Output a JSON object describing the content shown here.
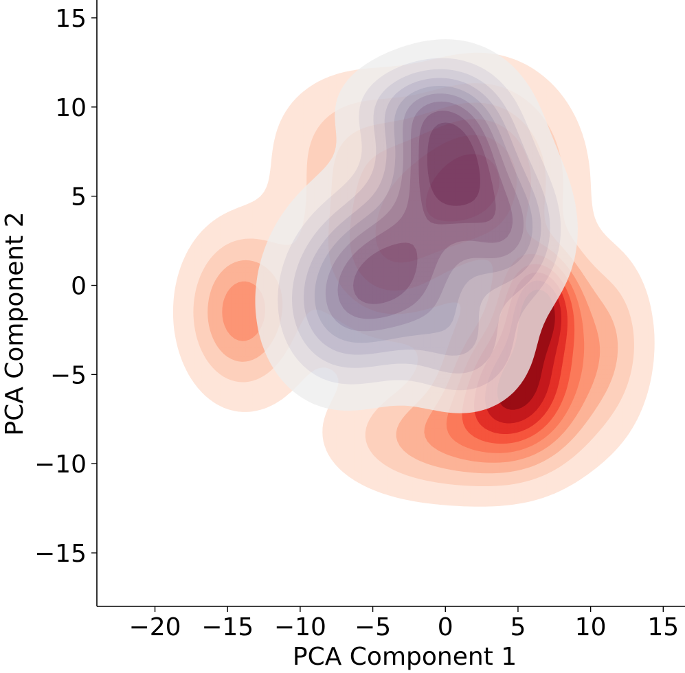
{
  "chart_data": {
    "type": "kde-contour",
    "title": "",
    "xlabel": "PCA Component 1",
    "ylabel": "PCA Component 2",
    "xlim": [
      -24,
      16.5
    ],
    "ylim": [
      -18,
      16
    ],
    "xticks": [
      -20,
      -15,
      -10,
      -5,
      0,
      5,
      10,
      15
    ],
    "yticks": [
      -15,
      -10,
      -5,
      0,
      5,
      10,
      15
    ],
    "xtick_labels": [
      "−20",
      "−15",
      "−10",
      "−5",
      "0",
      "5",
      "10",
      "15"
    ],
    "ytick_labels": [
      "−15",
      "−10",
      "−5",
      "0",
      "5",
      "10",
      "15"
    ],
    "grid": false,
    "series": [
      {
        "colormap": "Reds",
        "levels": 9,
        "colors": [
          "#fee5d9",
          "#fdd0bc",
          "#fcb397",
          "#fc9575",
          "#fb7a5a",
          "#f6553d",
          "#e32f27",
          "#c4181c",
          "#9a0c14"
        ],
        "components": [
          {
            "cx": -14.0,
            "cy": -1.5,
            "sx": 2.4,
            "sy": 2.8,
            "w": 0.45
          },
          {
            "cx": 5.0,
            "cy": -5.5,
            "sx": 3.0,
            "sy": 2.6,
            "w": 0.9
          },
          {
            "cx": 6.5,
            "cy": -1.0,
            "sx": 1.8,
            "sy": 2.0,
            "w": 0.8
          },
          {
            "cx": 2.5,
            "cy": 6.0,
            "sx": 3.5,
            "sy": 3.3,
            "w": 0.6
          },
          {
            "cx": -4.0,
            "cy": 2.0,
            "sx": 3.8,
            "sy": 3.5,
            "w": 0.45
          },
          {
            "cx": 0.0,
            "cy": -8.5,
            "sx": 4.5,
            "sy": 2.0,
            "w": 0.35
          },
          {
            "cx": -6.0,
            "cy": 8.0,
            "sx": 3.5,
            "sy": 2.5,
            "w": 0.2
          },
          {
            "cx": 11.0,
            "cy": -3.0,
            "sx": 2.0,
            "sy": 3.0,
            "w": 0.25
          }
        ]
      },
      {
        "colormap": "Blues-Purples",
        "levels": 9,
        "colors": [
          "#eeeeee",
          "#dcdce4",
          "#c8c8d8",
          "#b3b3cb",
          "#9ea0be",
          "#8c88ad",
          "#7b6d99",
          "#6b5284",
          "#5b3a70"
        ],
        "components": [
          {
            "cx": -3.5,
            "cy": 0.8,
            "sx": 3.6,
            "sy": 3.0,
            "w": 0.8
          },
          {
            "cx": 0.5,
            "cy": 7.0,
            "sx": 2.8,
            "sy": 2.8,
            "w": 1.0
          },
          {
            "cx": 4.5,
            "cy": 3.0,
            "sx": 2.2,
            "sy": 2.4,
            "w": 0.55
          },
          {
            "cx": -7.5,
            "cy": -1.5,
            "sx": 2.8,
            "sy": 2.8,
            "w": 0.35
          },
          {
            "cx": 1.5,
            "cy": -3.5,
            "sx": 2.5,
            "sy": 2.0,
            "w": 0.3
          },
          {
            "cx": -2.0,
            "cy": 10.0,
            "sx": 3.0,
            "sy": 1.6,
            "w": 0.3
          }
        ]
      }
    ]
  }
}
